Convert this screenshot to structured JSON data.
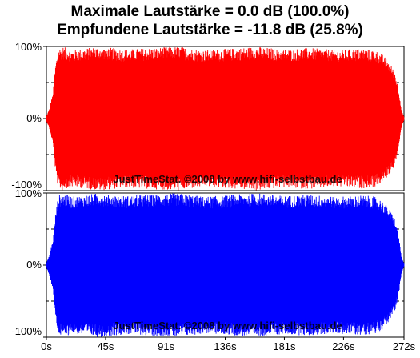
{
  "chart_data": {
    "type": "area",
    "title": "Maximale Lautstärke = 0.0 dB (100.0%)",
    "subtitle": "Empfundene Lautstärke = -11.8 dB (25.8%)",
    "watermark": "JustTimeStat. ©2008 by www.hifi-selbstbau.de",
    "x_ticks": [
      "0s",
      "45s",
      "91s",
      "136s",
      "181s",
      "226s",
      "272s"
    ],
    "x_tick_values": [
      0,
      45,
      91,
      136,
      181,
      226,
      272
    ],
    "xlim": [
      0,
      272
    ],
    "y_ticks": [
      "100%",
      "0%",
      "-100%"
    ],
    "y_tick_values": [
      100,
      0,
      -100
    ],
    "ylim": [
      -100,
      100
    ],
    "channels": [
      {
        "color": "#ff0000",
        "envelope": {
          "t": [
            0,
            2,
            5,
            7,
            9,
            12,
            20,
            40,
            60,
            80,
            100,
            120,
            140,
            160,
            180,
            200,
            220,
            240,
            250,
            255,
            260,
            265,
            268,
            270,
            272
          ],
          "amplitude": [
            3,
            12,
            35,
            75,
            97,
            100,
            95,
            100,
            96,
            98,
            100,
            95,
            97,
            100,
            96,
            98,
            95,
            97,
            95,
            90,
            80,
            65,
            40,
            12,
            2
          ]
        }
      },
      {
        "color": "#0000ff",
        "envelope": {
          "t": [
            0,
            2,
            5,
            7,
            9,
            12,
            20,
            40,
            60,
            80,
            100,
            120,
            140,
            160,
            180,
            200,
            220,
            240,
            250,
            255,
            260,
            265,
            268,
            270,
            272
          ],
          "amplitude": [
            3,
            12,
            35,
            72,
            96,
            100,
            95,
            100,
            96,
            98,
            100,
            95,
            97,
            100,
            96,
            98,
            95,
            97,
            95,
            90,
            80,
            65,
            40,
            12,
            2
          ]
        }
      }
    ]
  }
}
